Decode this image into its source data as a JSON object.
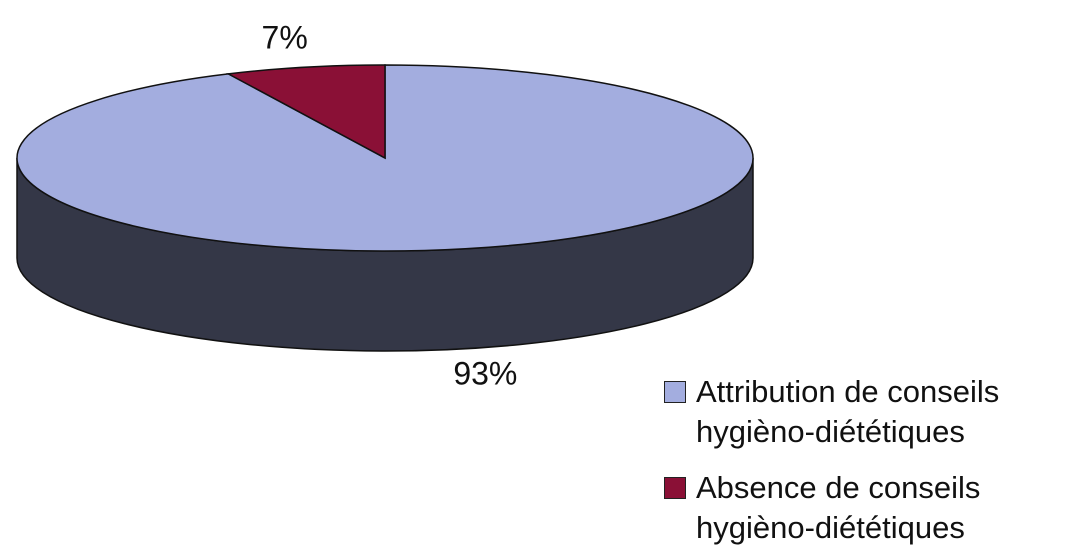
{
  "chart_data": {
    "type": "pie",
    "categories": [
      "Attribution de conseils hygièno-diététiques",
      "Absence de conseils hygièno-diététiques"
    ],
    "values": [
      93,
      7
    ],
    "value_labels": [
      "93%",
      "7%"
    ],
    "colors": [
      "#a3addf",
      "#8a1036"
    ],
    "legend": "bottom-right"
  }
}
